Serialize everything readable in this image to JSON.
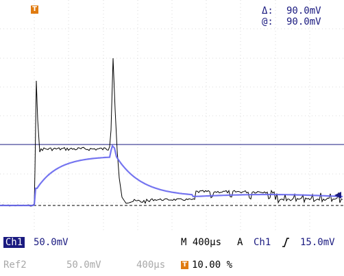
{
  "colors": {
    "background": "#ffffff",
    "grid": "#d9d9d9",
    "ch1": "#000000",
    "ref2": "#6666ee",
    "cursor": "#1a1a80",
    "trigger_marker": "#e07b10",
    "label_navy": "#1a1a80",
    "label_grey": "#a8a8a8"
  },
  "cursor_readout": {
    "delta_symbol": "Δ:",
    "delta_value": "90.0mV",
    "at_symbol": "@:",
    "at_value": "90.0mV"
  },
  "trigger_position_marker": "T",
  "trigger_level_arrow": "◀",
  "status": {
    "ch1_label": "Ch1",
    "ch1_scale": "50.0mV",
    "timebase": "M 400µs",
    "trigger_label": "A",
    "trigger_source": "Ch1",
    "trigger_slope_icon": "rising-edge-icon",
    "trigger_level": "15.0mV",
    "ref2_label": "Ref2",
    "ref2_scale": "50.0mV",
    "ref2_timebase": "400µs",
    "trigger_marker_label": "T",
    "trigger_position": "10.00 %"
  },
  "icons": [
    "trigger-position-icon",
    "rising-edge-icon",
    "trigger-level-arrow-icon"
  ]
}
